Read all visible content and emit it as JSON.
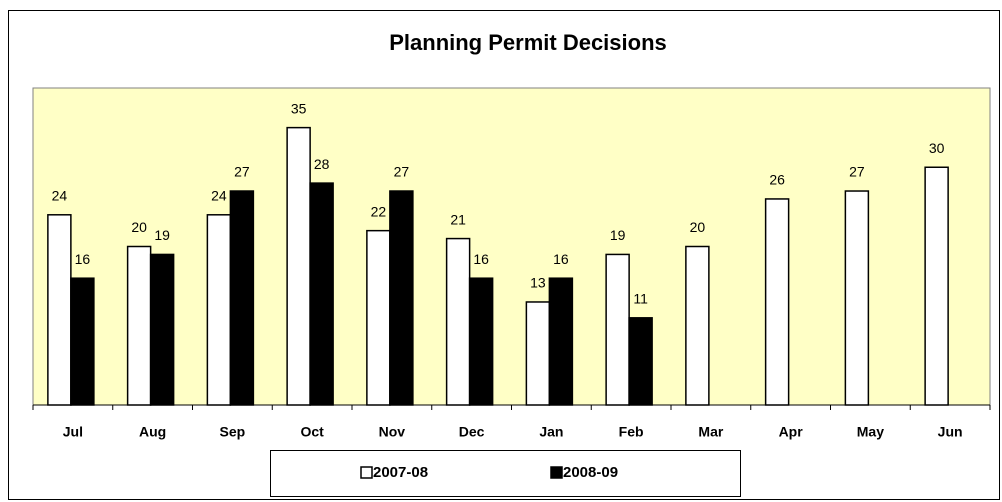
{
  "chart_data": {
    "type": "bar",
    "title": "Planning Permit Decisions",
    "categories": [
      "Jul",
      "Aug",
      "Sep",
      "Oct",
      "Nov",
      "Dec",
      "Jan",
      "Feb",
      "Mar",
      "Apr",
      "May",
      "Jun"
    ],
    "series": [
      {
        "name": "2007-08",
        "color": "#ffffff",
        "values": [
          24,
          20,
          24,
          35,
          22,
          21,
          13,
          19,
          20,
          26,
          27,
          30
        ]
      },
      {
        "name": "2008-09",
        "color": "#000000",
        "values": [
          16,
          19,
          27,
          28,
          27,
          16,
          16,
          11,
          null,
          null,
          null,
          null
        ]
      }
    ],
    "ylim": [
      0,
      40
    ],
    "plot_color": "#ffffc6",
    "data_labels": true,
    "legend": "bottom"
  }
}
